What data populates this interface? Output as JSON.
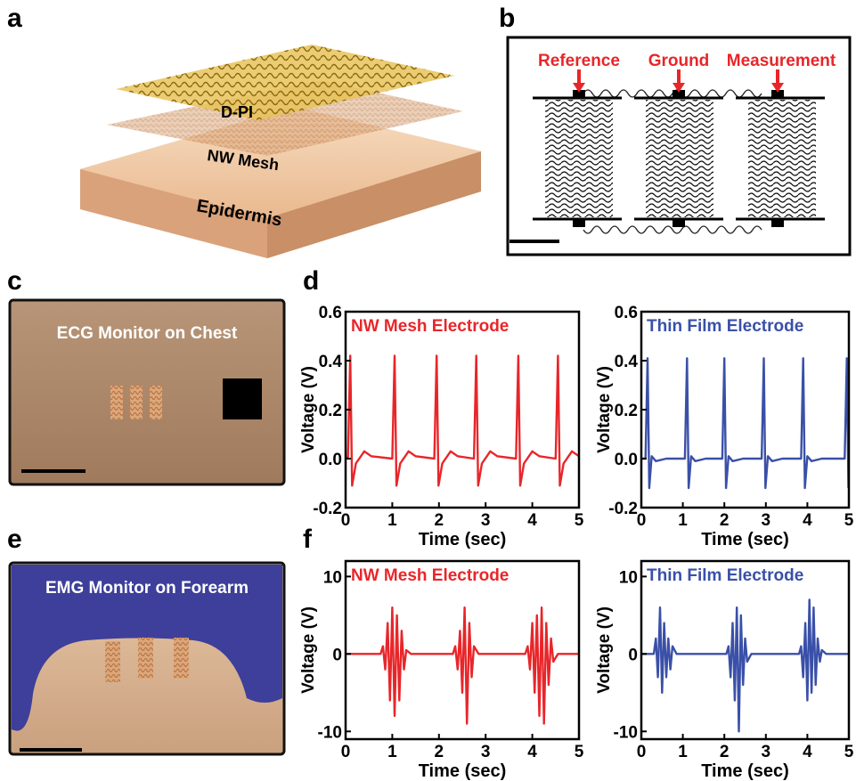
{
  "panel_labels": [
    "a",
    "b",
    "c",
    "d",
    "e",
    "f"
  ],
  "panel_a": {
    "labels": [
      "D-PI",
      "NW Mesh",
      "Epidermis"
    ]
  },
  "panel_b": {
    "labels": [
      "Reference",
      "Ground",
      "Measurement"
    ]
  },
  "panel_c": {
    "caption": "ECG Monitor on Chest"
  },
  "panel_e": {
    "caption": "EMG Monitor on Forearm"
  },
  "chart_data": [
    {
      "type": "line",
      "xlabel": "Time (sec)",
      "ylabel": "Voltage (V)",
      "xlim": [
        0,
        5
      ],
      "ylim": [
        -0.2,
        0.6
      ],
      "xticks": [
        0,
        1,
        2,
        3,
        4,
        5
      ],
      "yticks": [
        -0.2,
        {
          "value": 0,
          "label": "0.0"
        },
        0.2,
        0.4,
        0.6
      ],
      "x": [
        0,
        0.05,
        0.1,
        0.14,
        0.22,
        0.4,
        0.55,
        1.0,
        1.05,
        1.09,
        1.17,
        1.35,
        1.5,
        1.9,
        1.95,
        1.99,
        2.07,
        2.25,
        2.4,
        2.75,
        2.8,
        2.84,
        2.92,
        3.1,
        3.25,
        3.65,
        3.7,
        3.74,
        3.82,
        4.0,
        4.15,
        4.5,
        4.55,
        4.59,
        4.67,
        4.85,
        5.0
      ],
      "series": [
        {
          "name": "NW Mesh Electrode",
          "color": "#e8262a",
          "values": [
            0.01,
            0,
            0.42,
            -0.11,
            -0.02,
            0.03,
            0.01,
            0,
            0.42,
            -0.11,
            -0.02,
            0.03,
            0.01,
            0,
            0.42,
            -0.11,
            -0.02,
            0.03,
            0.01,
            0,
            0.42,
            -0.11,
            -0.02,
            0.03,
            0.01,
            0,
            0.42,
            -0.11,
            -0.02,
            0.03,
            0.01,
            0,
            0.42,
            -0.11,
            -0.02,
            0.03,
            0.01
          ]
        }
      ]
    },
    {
      "type": "line",
      "xlabel": "Time (sec)",
      "ylabel": "Voltage (V)",
      "xlim": [
        0,
        5
      ],
      "ylim": [
        -0.2,
        0.6
      ],
      "xticks": [
        0,
        1,
        2,
        3,
        4,
        5
      ],
      "yticks": [
        -0.2,
        {
          "value": 0,
          "label": "0.0"
        },
        0.2,
        0.4,
        0.6
      ],
      "x": [
        0,
        0.1,
        0.15,
        0.19,
        0.25,
        0.35,
        0.6,
        1.05,
        1.1,
        1.14,
        1.2,
        1.3,
        1.55,
        1.95,
        2.0,
        2.04,
        2.1,
        2.2,
        2.45,
        2.9,
        2.95,
        2.99,
        3.05,
        3.15,
        3.4,
        3.85,
        3.9,
        3.94,
        4.0,
        4.1,
        4.35,
        4.9,
        4.95,
        4.99
      ],
      "series": [
        {
          "name": "Thin Film Electrode",
          "color": "#3a50a8",
          "values": [
            0,
            0,
            0.41,
            -0.12,
            0.01,
            -0.01,
            0,
            0,
            0.41,
            -0.12,
            0.01,
            -0.01,
            0,
            0,
            0.41,
            -0.12,
            0.01,
            -0.01,
            0,
            0,
            0.41,
            -0.12,
            0.01,
            -0.01,
            0,
            0,
            0.41,
            -0.12,
            0.01,
            -0.01,
            0,
            0,
            0.41,
            -0.12
          ]
        }
      ]
    },
    {
      "type": "line",
      "xlabel": "Time (sec)",
      "ylabel": "Voltage (V)",
      "xlim": [
        0,
        5
      ],
      "ylim": [
        -11,
        12
      ],
      "xticks": [
        0,
        1,
        2,
        3,
        4,
        5
      ],
      "yticks": [
        -10,
        0,
        10
      ],
      "x": [
        0,
        0.75,
        0.8,
        0.85,
        0.9,
        0.95,
        1.0,
        1.05,
        1.1,
        1.15,
        1.2,
        1.25,
        1.3,
        1.4,
        2.3,
        2.35,
        2.4,
        2.45,
        2.5,
        2.55,
        2.6,
        2.65,
        2.7,
        2.75,
        2.85,
        3.85,
        3.9,
        3.95,
        4.0,
        4.05,
        4.1,
        4.15,
        4.2,
        4.25,
        4.3,
        4.35,
        4.4,
        4.45,
        4.55,
        5
      ],
      "series": [
        {
          "name": "NW Mesh Electrode",
          "color": "#e8262a",
          "values": [
            0,
            0,
            1,
            -2,
            4,
            -6,
            6,
            -8,
            5,
            -6,
            3,
            -2,
            0.5,
            0,
            0,
            1,
            -2,
            3,
            -5,
            6,
            -9,
            4,
            -3,
            1,
            0,
            0,
            1,
            -2,
            4,
            -5,
            5,
            -8,
            6,
            -9,
            4,
            -4,
            2,
            -1,
            0,
            0
          ]
        }
      ]
    },
    {
      "type": "line",
      "xlabel": "Time (sec)",
      "ylabel": "Voltage (V)",
      "xlim": [
        0,
        5
      ],
      "ylim": [
        -11,
        12
      ],
      "xticks": [
        0,
        1,
        2,
        3,
        4,
        5
      ],
      "yticks": [
        -10,
        0,
        10
      ],
      "x": [
        0,
        0.3,
        0.35,
        0.4,
        0.45,
        0.5,
        0.55,
        0.6,
        0.65,
        0.7,
        0.75,
        0.85,
        2.05,
        2.1,
        2.15,
        2.2,
        2.25,
        2.3,
        2.35,
        2.4,
        2.45,
        2.5,
        2.55,
        2.65,
        3.8,
        3.85,
        3.9,
        3.95,
        4.0,
        4.05,
        4.1,
        4.15,
        4.2,
        4.25,
        4.3,
        4.35,
        4.45,
        5
      ],
      "series": [
        {
          "name": "Thin Film Electrode",
          "color": "#3a50a8",
          "values": [
            0,
            0,
            2,
            -3,
            6,
            -5,
            4,
            -3,
            2,
            -2,
            1,
            0,
            0,
            1,
            -3,
            4,
            -6,
            6,
            -10,
            5,
            -4,
            2,
            -1,
            0,
            0,
            1,
            -3,
            4,
            -6,
            7,
            -5,
            6,
            -4,
            2,
            -1,
            0.5,
            0,
            0
          ]
        }
      ]
    }
  ]
}
